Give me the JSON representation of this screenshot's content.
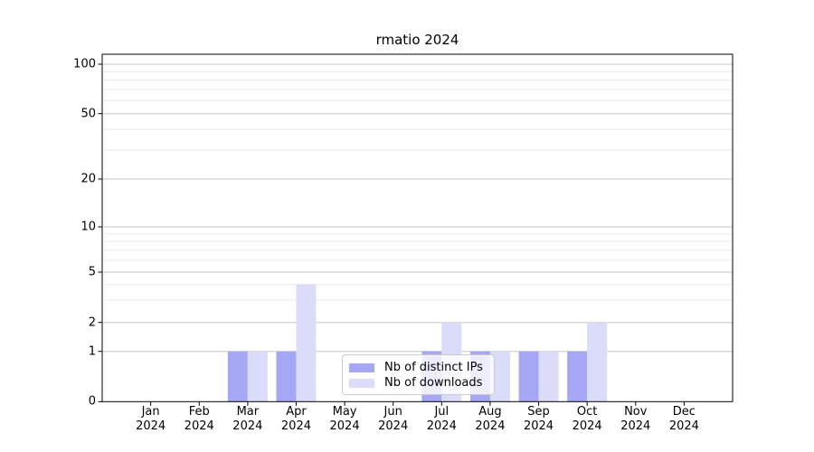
{
  "title": "rmatio 2024",
  "legend": {
    "items": [
      {
        "label": "Nb of distinct IPs",
        "color": "#a5a6f4"
      },
      {
        "label": "Nb of downloads",
        "color": "#dbdcf9"
      }
    ]
  },
  "chart_data": {
    "type": "bar",
    "title": "rmatio 2024",
    "categories": [
      "Jan 2024",
      "Feb 2024",
      "Mar 2024",
      "Apr 2024",
      "May 2024",
      "Jun 2024",
      "Jul 2024",
      "Aug 2024",
      "Sep 2024",
      "Oct 2024",
      "Nov 2024",
      "Dec 2024"
    ],
    "series": [
      {
        "name": "Nb of distinct IPs",
        "color": "#a5a6f4",
        "values": [
          0,
          0,
          1,
          1,
          0,
          0,
          1,
          1,
          1,
          1,
          0,
          0
        ]
      },
      {
        "name": "Nb of downloads",
        "color": "#dbdcf9",
        "values": [
          0,
          0,
          1,
          4,
          0,
          0,
          2,
          1,
          1,
          2,
          0,
          0
        ]
      }
    ],
    "xlabel": "",
    "ylabel": "",
    "yscale": "symlog",
    "ylim": [
      0,
      115
    ],
    "y_major_ticks": [
      0,
      1,
      2,
      5,
      10,
      20,
      50,
      100
    ],
    "y_minor_gridlines": [
      3,
      4,
      6,
      7,
      8,
      9,
      30,
      40,
      60,
      70,
      80,
      90
    ],
    "grid": "horizontal",
    "legend_position": "lower center (inside plot)",
    "colors": {
      "major_grid": "#c6c6c6",
      "minor_grid": "#e9e9e9",
      "spine": "#000000",
      "background": "#ffffff"
    }
  }
}
